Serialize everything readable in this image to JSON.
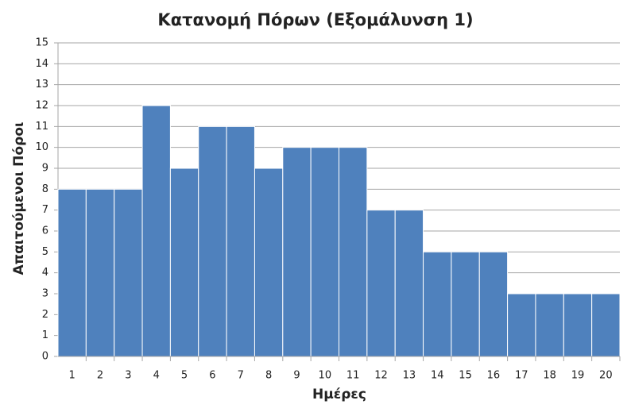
{
  "chart_data": {
    "type": "bar",
    "title": "Κατανομή Πόρων (Εξομάλυνση 1)",
    "x_label": "Ημέρες",
    "y_label": "Απαιτούμενοι Πόροι",
    "categories": [
      "1",
      "2",
      "3",
      "4",
      "5",
      "6",
      "7",
      "8",
      "9",
      "10",
      "11",
      "12",
      "13",
      "14",
      "15",
      "16",
      "17",
      "18",
      "19",
      "20"
    ],
    "values": [
      8,
      8,
      8,
      12,
      9,
      11,
      11,
      9,
      10,
      10,
      10,
      7,
      7,
      5,
      5,
      5,
      3,
      3,
      3,
      3
    ],
    "color": "#4f81bd",
    "ylim": [
      0,
      15
    ],
    "yticks": [
      0,
      1,
      2,
      3,
      4,
      5,
      6,
      7,
      8,
      9,
      10,
      11,
      12,
      13,
      14,
      15
    ],
    "grid": true
  }
}
